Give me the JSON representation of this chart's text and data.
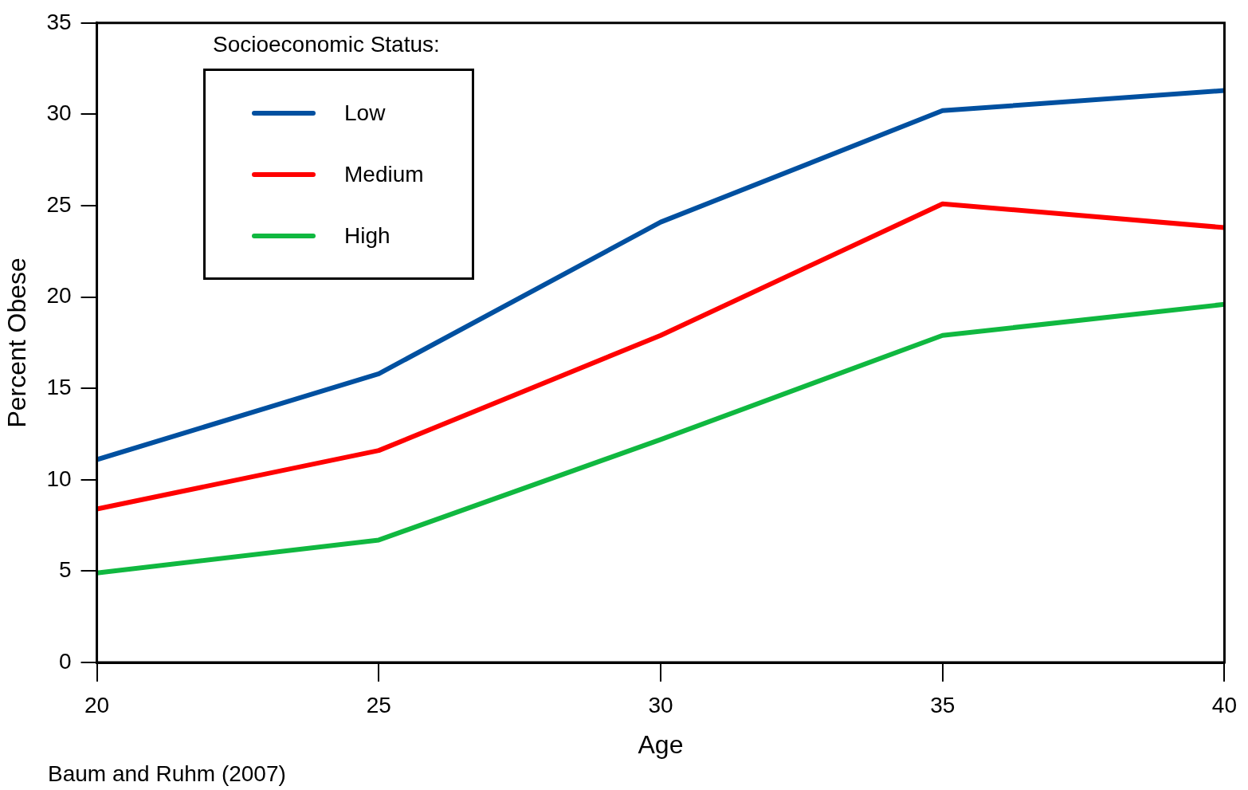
{
  "chart_data": {
    "type": "line",
    "xlabel": "Age",
    "ylabel": "Percent Obese",
    "legend_title": "Socioeconomic Status:",
    "x": [
      20,
      25,
      30,
      35,
      40
    ],
    "series": [
      {
        "name": "Low",
        "color": "#0050a0",
        "values": [
          11.1,
          15.8,
          24.1,
          30.2,
          31.3
        ]
      },
      {
        "name": "Medium",
        "color": "#ff0000",
        "values": [
          8.4,
          11.6,
          17.9,
          25.1,
          23.8
        ]
      },
      {
        "name": "High",
        "color": "#10b840",
        "values": [
          4.9,
          6.7,
          12.2,
          17.9,
          19.6
        ]
      }
    ],
    "xlim": [
      20,
      40
    ],
    "xticks": [
      20,
      25,
      30,
      35,
      40
    ],
    "ylim": [
      0,
      35
    ],
    "yticks": [
      0,
      5,
      10,
      15,
      20,
      25,
      30,
      35
    ],
    "grid": false,
    "legend": "top left",
    "marker": "none",
    "line_style": "solid",
    "annotations": [
      "Baum and Ruhm (2007)"
    ]
  }
}
